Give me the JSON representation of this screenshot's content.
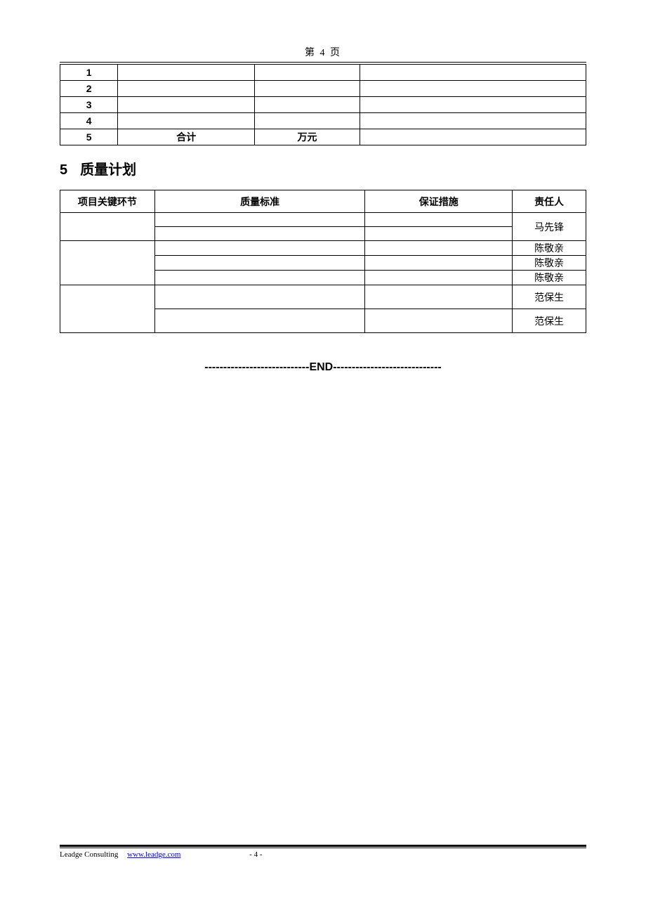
{
  "header": {
    "text": "第 4 页"
  },
  "table1": {
    "rows": [
      {
        "c1": "1",
        "c2": "",
        "c3": "",
        "c4": ""
      },
      {
        "c1": "2",
        "c2": "",
        "c3": "",
        "c4": ""
      },
      {
        "c1": "3",
        "c2": "",
        "c3": "",
        "c4": ""
      },
      {
        "c1": "4",
        "c2": "",
        "c3": "",
        "c4": ""
      },
      {
        "c1": "5",
        "c2": "合计",
        "c3": "万元",
        "c4": ""
      }
    ]
  },
  "section5": {
    "number": "5",
    "title": "质量计划"
  },
  "table2": {
    "headers": {
      "c1": "项目关键环节",
      "c2": "质量标准",
      "c3": "保证措施",
      "c4": "责任人"
    },
    "persons": {
      "p1": "马先锋",
      "p2": "陈敬亲",
      "p3": "陈敬亲",
      "p4": "陈敬亲",
      "p5": "范保生",
      "p6": "范保生"
    }
  },
  "end": {
    "text": "----------------------------END-----------------------------"
  },
  "footer": {
    "company": "Leadge Consulting",
    "url": "www.leadge.com",
    "page": "- 4 -"
  }
}
